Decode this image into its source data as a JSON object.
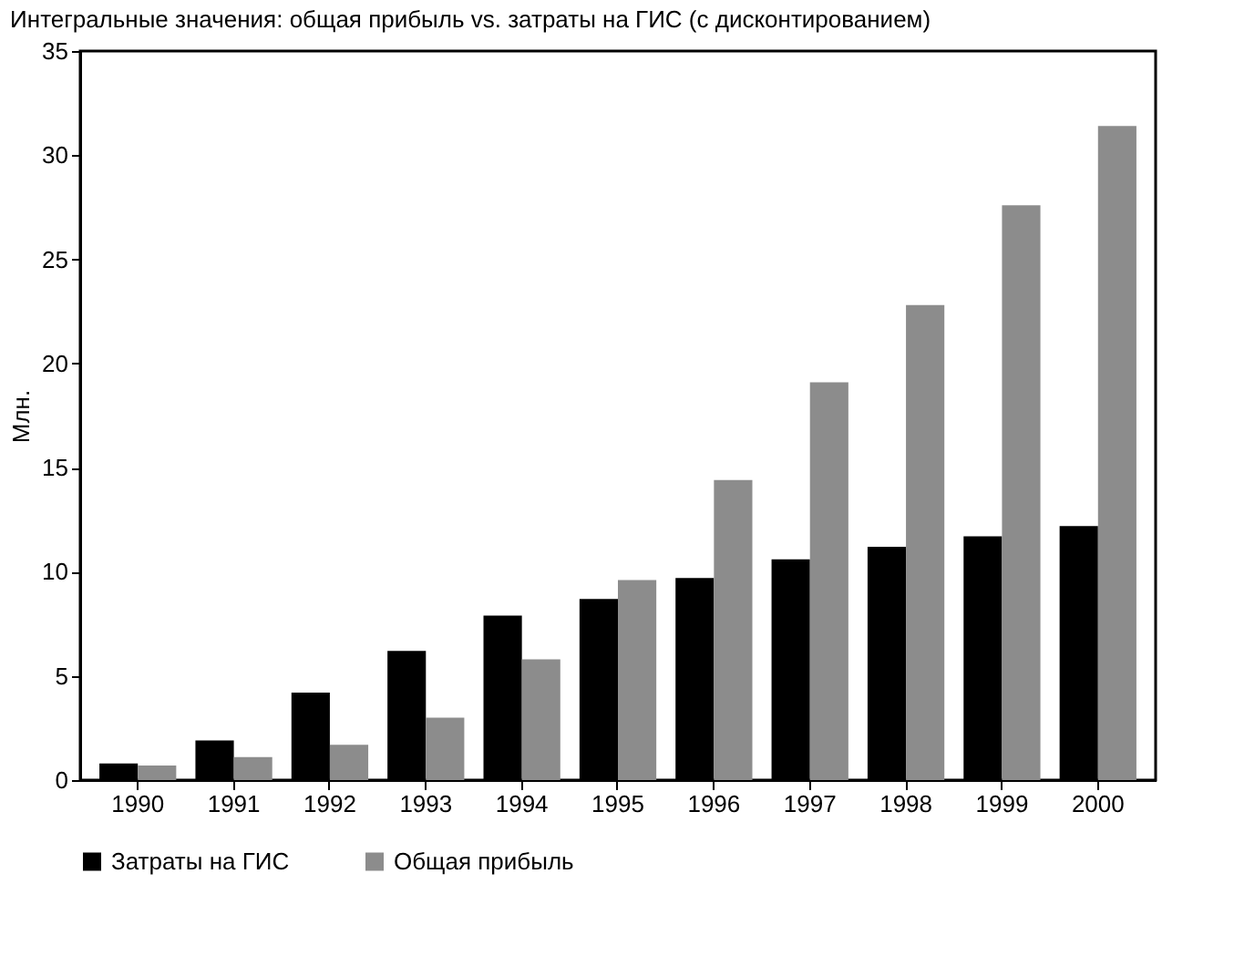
{
  "chart_data": {
    "type": "bar",
    "title": "Интегральные значения: общая прибыль vs. затраты на ГИС (с дисконтированием)",
    "ylabel": "Млн.",
    "categories": [
      "1990",
      "1991",
      "1992",
      "1993",
      "1994",
      "1995",
      "1996",
      "1997",
      "1998",
      "1999",
      "2000"
    ],
    "series": [
      {
        "name": "Затраты на ГИС",
        "color": "#000000",
        "values": [
          0.8,
          1.9,
          4.2,
          6.2,
          7.9,
          8.7,
          9.7,
          10.6,
          11.2,
          11.7,
          12.2
        ]
      },
      {
        "name": "Общая прибыль",
        "color": "#8c8c8c",
        "values": [
          0.7,
          1.1,
          1.7,
          3.0,
          5.8,
          9.6,
          14.4,
          19.1,
          22.8,
          27.6,
          31.4
        ]
      }
    ],
    "ylim": [
      0,
      35
    ],
    "yticks": [
      0,
      5,
      10,
      15,
      20,
      25,
      30,
      35
    ],
    "grid": false,
    "legend": "bottom"
  }
}
